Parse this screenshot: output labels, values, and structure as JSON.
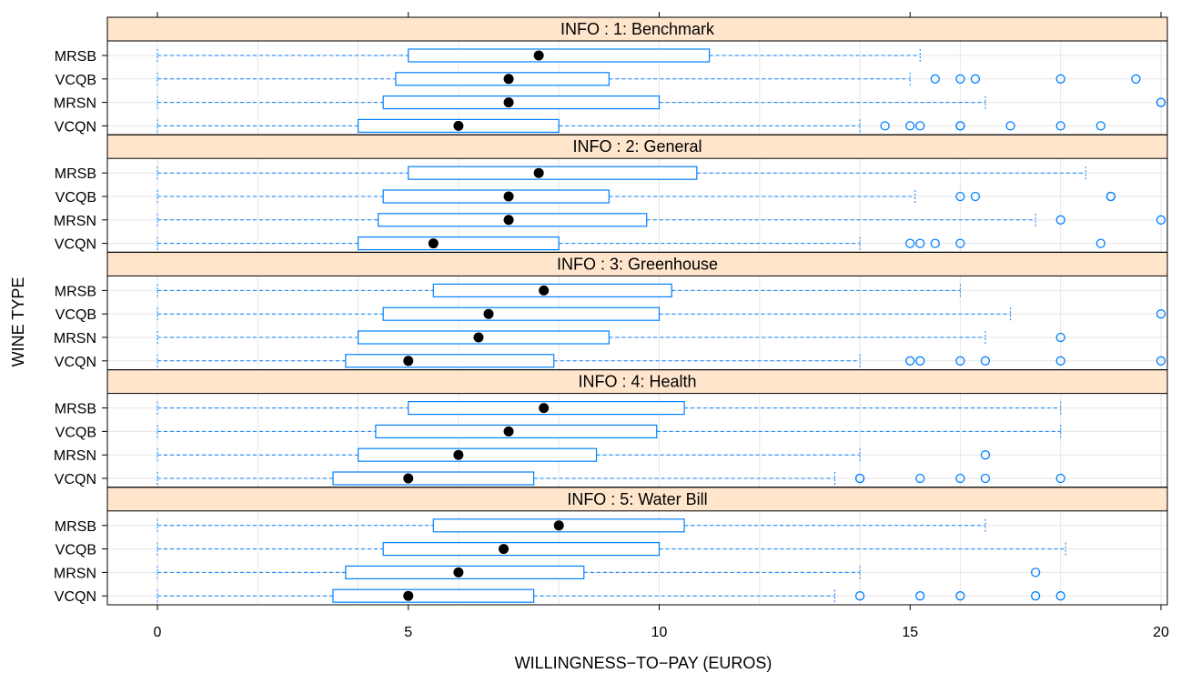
{
  "chart_data": {
    "type": "boxplot",
    "xlabel": "WILLINGNESS−TO−PAY (EUROS)",
    "ylabel": "WINE TYPE",
    "xlim": [
      -1,
      20.3
    ],
    "xticks": [
      0,
      5,
      10,
      15,
      20
    ],
    "xtick_labels": [
      "0",
      "5",
      "10",
      "15",
      "20"
    ],
    "grid": true,
    "categories": [
      "MRSB",
      "VCQB",
      "MRSN",
      "VCQN"
    ],
    "colors": {
      "box": "#0080ff",
      "strip": "#ffe5cc",
      "median": "#000000",
      "grid": "#e6e6e6"
    },
    "panels": [
      {
        "title": "INFO : 1: Benchmark",
        "boxes": [
          {
            "label": "MRSB",
            "min": 0,
            "q1": 5,
            "median": 7.6,
            "q3": 11,
            "max": 15.2,
            "outliers": []
          },
          {
            "label": "VCQB",
            "min": 0,
            "q1": 4.75,
            "median": 7,
            "q3": 9,
            "max": 15,
            "outliers": [
              15.5,
              16,
              16.3,
              18,
              19.5
            ]
          },
          {
            "label": "MRSN",
            "min": 0,
            "q1": 4.5,
            "median": 7,
            "q3": 10,
            "max": 16.5,
            "outliers": [
              20,
              20
            ]
          },
          {
            "label": "VCQN",
            "min": 0,
            "q1": 4,
            "median": 6,
            "q3": 8,
            "max": 14,
            "outliers": [
              14.5,
              15,
              15.2,
              16,
              16,
              17,
              18,
              18.8
            ]
          }
        ]
      },
      {
        "title": "INFO : 2: General",
        "boxes": [
          {
            "label": "MRSB",
            "min": 0,
            "q1": 5,
            "median": 7.6,
            "q3": 10.75,
            "max": 18.5,
            "outliers": []
          },
          {
            "label": "VCQB",
            "min": 0,
            "q1": 4.5,
            "median": 7,
            "q3": 9,
            "max": 15.1,
            "outliers": [
              16,
              16.3,
              19,
              19
            ]
          },
          {
            "label": "MRSN",
            "min": 0,
            "q1": 4.4,
            "median": 7,
            "q3": 9.75,
            "max": 17.5,
            "outliers": [
              18,
              20
            ]
          },
          {
            "label": "VCQN",
            "min": 0,
            "q1": 4,
            "median": 5.5,
            "q3": 8,
            "max": 14,
            "outliers": [
              15,
              15.2,
              15.5,
              16,
              18.8
            ]
          }
        ]
      },
      {
        "title": "INFO : 3: Greenhouse",
        "boxes": [
          {
            "label": "MRSB",
            "min": 0,
            "q1": 5.5,
            "median": 7.7,
            "q3": 10.25,
            "max": 16,
            "outliers": []
          },
          {
            "label": "VCQB",
            "min": 0,
            "q1": 4.5,
            "median": 6.6,
            "q3": 10,
            "max": 17,
            "outliers": [
              20
            ]
          },
          {
            "label": "MRSN",
            "min": 0,
            "q1": 4,
            "median": 6.4,
            "q3": 9,
            "max": 16.5,
            "outliers": [
              18
            ]
          },
          {
            "label": "VCQN",
            "min": 0,
            "q1": 3.75,
            "median": 5,
            "q3": 7.9,
            "max": 14,
            "outliers": [
              15,
              15.2,
              16,
              16.5,
              18,
              20
            ]
          }
        ]
      },
      {
        "title": "INFO : 4: Health",
        "boxes": [
          {
            "label": "MRSB",
            "min": 0,
            "q1": 5,
            "median": 7.7,
            "q3": 10.5,
            "max": 18,
            "outliers": []
          },
          {
            "label": "VCQB",
            "min": 0,
            "q1": 4.35,
            "median": 7,
            "q3": 9.95,
            "max": 18,
            "outliers": []
          },
          {
            "label": "MRSN",
            "min": 0,
            "q1": 4,
            "median": 6,
            "q3": 8.75,
            "max": 14,
            "outliers": [
              16.5
            ]
          },
          {
            "label": "VCQN",
            "min": 0,
            "q1": 3.5,
            "median": 5,
            "q3": 7.5,
            "max": 13.5,
            "outliers": [
              14,
              14,
              15.2,
              16,
              16.5,
              18
            ]
          }
        ]
      },
      {
        "title": "INFO : 5: Water Bill",
        "boxes": [
          {
            "label": "MRSB",
            "min": 0,
            "q1": 5.5,
            "median": 8,
            "q3": 10.5,
            "max": 16.5,
            "outliers": []
          },
          {
            "label": "VCQB",
            "min": 0,
            "q1": 4.5,
            "median": 6.9,
            "q3": 10,
            "max": 18.1,
            "outliers": []
          },
          {
            "label": "MRSN",
            "min": 0,
            "q1": 3.75,
            "median": 6,
            "q3": 8.5,
            "max": 14,
            "outliers": [
              17.5
            ]
          },
          {
            "label": "VCQN",
            "min": 0,
            "q1": 3.5,
            "median": 5,
            "q3": 7.5,
            "max": 13.5,
            "outliers": [
              14,
              15.2,
              16,
              17.5,
              18
            ]
          }
        ]
      }
    ]
  }
}
